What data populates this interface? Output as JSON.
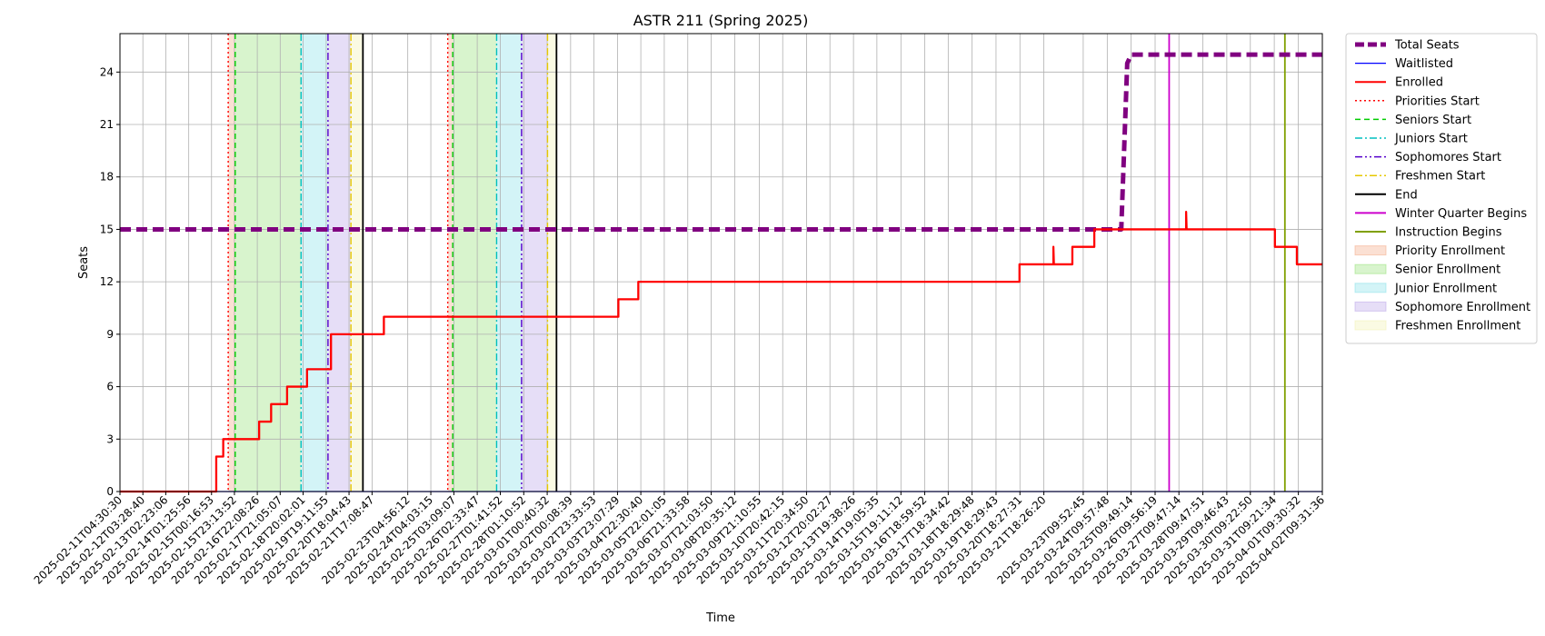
{
  "chart_data": {
    "type": "line",
    "title": "ASTR 211 (Spring 2025)",
    "xlabel": "Time",
    "ylabel": "Seats",
    "x_range": [
      "2025-02-11T04:30:30",
      "2025-04-02T09:31:36"
    ],
    "ylim": [
      0,
      26.2
    ],
    "y_ticks": [
      0,
      3,
      6,
      9,
      12,
      15,
      18,
      21,
      24
    ],
    "grid": true,
    "legend_position": "outside-right",
    "x_tick_labels": [
      "2025-02-11T04:30:30",
      "2025-02-12T03:28:40",
      "2025-02-13T02:23:06",
      "2025-02-14T01:25:56",
      "2025-02-15T00:16:53",
      "2025-02-15T23:13:52",
      "2025-02-16T22:08:26",
      "2025-02-17T21:05:07",
      "2025-02-18T20:02:01",
      "2025-02-19T19:11:55",
      "2025-02-20T18:04:43",
      "2025-02-21T17:08:47",
      "2025-02-23T04:56:12",
      "2025-02-24T04:03:15",
      "2025-02-25T03:09:07",
      "2025-02-26T02:33:47",
      "2025-02-27T01:41:52",
      "2025-02-28T01:10:52",
      "2025-03-01T00:40:32",
      "2025-03-02T00:08:39",
      "2025-03-02T23:33:53",
      "2025-03-03T23:07:29",
      "2025-03-04T22:30:40",
      "2025-03-05T22:01:05",
      "2025-03-06T21:33:58",
      "2025-03-07T21:03:50",
      "2025-03-08T20:35:12",
      "2025-03-09T21:10:55",
      "2025-03-10T20:42:15",
      "2025-03-11T20:34:50",
      "2025-03-12T20:02:27",
      "2025-03-13T19:38:26",
      "2025-03-14T19:05:35",
      "2025-03-15T19:11:12",
      "2025-03-16T18:59:52",
      "2025-03-17T18:34:42",
      "2025-03-18T18:29:48",
      "2025-03-19T18:29:43",
      "2025-03-20T18:27:31",
      "2025-03-21T18:26:20",
      "2025-03-23T09:52:45",
      "2025-03-24T09:57:48",
      "2025-03-25T09:49:14",
      "2025-03-26T09:56:19",
      "2025-03-27T09:47:14",
      "2025-03-28T09:47:51",
      "2025-03-29T09:46:43",
      "2025-03-30T09:22:50",
      "2025-03-31T09:21:34",
      "2025-04-01T09:30:32",
      "2025-04-02T09:31:36"
    ],
    "series": [
      {
        "name": "Total Seats",
        "color": "#800080",
        "style": "dashed-thick",
        "points": [
          [
            "2025-02-11T04:30:30",
            15
          ],
          [
            "2025-03-25T00:00:00",
            15
          ],
          [
            "2025-03-25T06:00:00",
            24.5
          ],
          [
            "2025-03-25T10:00:00",
            25
          ],
          [
            "2025-04-02T09:31:36",
            25
          ]
        ]
      },
      {
        "name": "Waitlisted",
        "color": "#0000ff",
        "style": "solid-thin",
        "points": [
          [
            "2025-02-11T04:30:30",
            0
          ],
          [
            "2025-04-02T09:31:36",
            0
          ]
        ]
      },
      {
        "name": "Enrolled",
        "color": "#ff0000",
        "style": "solid",
        "points": [
          [
            "2025-02-11T04:30:30",
            0
          ],
          [
            "2025-02-15T05:00:00",
            0
          ],
          [
            "2025-02-15T05:00:00",
            2
          ],
          [
            "2025-02-15T12:00:00",
            2
          ],
          [
            "2025-02-15T12:00:00",
            3
          ],
          [
            "2025-02-17T00:00:00",
            3
          ],
          [
            "2025-02-17T00:00:00",
            4
          ],
          [
            "2025-02-17T12:00:00",
            4
          ],
          [
            "2025-02-17T12:00:00",
            5
          ],
          [
            "2025-02-18T04:00:00",
            5
          ],
          [
            "2025-02-18T04:00:00",
            6
          ],
          [
            "2025-02-19T00:00:00",
            6
          ],
          [
            "2025-02-19T00:00:00",
            7
          ],
          [
            "2025-02-20T00:00:00",
            7
          ],
          [
            "2025-02-20T00:00:00",
            9
          ],
          [
            "2025-02-22T05:00:00",
            9
          ],
          [
            "2025-02-22T05:00:00",
            10
          ],
          [
            "2025-03-04T00:00:00",
            10
          ],
          [
            "2025-03-04T00:00:00",
            11
          ],
          [
            "2025-03-04T20:00:00",
            11
          ],
          [
            "2025-03-04T20:00:00",
            12
          ],
          [
            "2025-03-20T18:00:00",
            12
          ],
          [
            "2025-03-20T18:00:00",
            13
          ],
          [
            "2025-03-22T04:00:00",
            13
          ],
          [
            "2025-03-22T04:00:00",
            14
          ],
          [
            "2025-03-22T04:30:00",
            13
          ],
          [
            "2025-03-22T23:00:00",
            13
          ],
          [
            "2025-03-22T23:00:00",
            14
          ],
          [
            "2025-03-23T21:00:00",
            14
          ],
          [
            "2025-03-23T21:00:00",
            15
          ],
          [
            "2025-03-27T17:00:00",
            15
          ],
          [
            "2025-03-27T17:00:00",
            16
          ],
          [
            "2025-03-27T17:30:00",
            15
          ],
          [
            "2025-03-31T10:00:00",
            15
          ],
          [
            "2025-03-31T10:00:00",
            14
          ],
          [
            "2025-04-01T08:00:00",
            14
          ],
          [
            "2025-04-01T08:00:00",
            13
          ],
          [
            "2025-04-02T09:31:36",
            13
          ]
        ]
      }
    ],
    "vertical_lines": [
      {
        "name": "Priorities Start",
        "color": "#ff0000",
        "style": "dotted",
        "x": [
          "2025-02-15T17:00:00",
          "2025-02-24T21:00:00"
        ]
      },
      {
        "name": "Seniors Start",
        "color": "#00cc00",
        "style": "dashed",
        "x": [
          "2025-02-16T00:00:00",
          "2025-02-25T02:00:00"
        ]
      },
      {
        "name": "Juniors Start",
        "color": "#00bfbf",
        "style": "dashdot",
        "x": [
          "2025-02-18T18:00:00",
          "2025-02-26T22:00:00"
        ]
      },
      {
        "name": "Sophomores Start",
        "color": "#5500cc",
        "style": "dashdotdot",
        "x": [
          "2025-02-19T21:00:00",
          "2025-02-27T23:00:00"
        ]
      },
      {
        "name": "Freshmen Start",
        "color": "#e6c800",
        "style": "dashdot",
        "x": [
          "2025-02-20T20:00:00",
          "2025-03-01T01:00:00"
        ]
      },
      {
        "name": "End",
        "color": "#000000",
        "style": "solid",
        "x": [
          "2025-02-21T08:00:00",
          "2025-03-01T10:00:00"
        ]
      },
      {
        "name": "Winter Quarter Begins",
        "color": "#cc00cc",
        "style": "solid",
        "x": [
          "2025-03-27T00:00:00"
        ]
      },
      {
        "name": "Instruction Begins",
        "color": "#80a000",
        "style": "solid",
        "x": [
          "2025-03-31T20:00:00"
        ]
      }
    ],
    "shaded_spans": [
      {
        "name": "Priority Enrollment",
        "color": "#f4a582",
        "spans": [
          [
            "2025-02-15T17:00:00",
            "2025-02-16T00:00:00"
          ],
          [
            "2025-02-24T21:00:00",
            "2025-02-25T02:00:00"
          ]
        ]
      },
      {
        "name": "Senior Enrollment",
        "color": "#90e070",
        "spans": [
          [
            "2025-02-16T00:00:00",
            "2025-02-18T18:00:00"
          ],
          [
            "2025-02-25T02:00:00",
            "2025-02-26T22:00:00"
          ]
        ]
      },
      {
        "name": "Junior Enrollment",
        "color": "#80e0e8",
        "spans": [
          [
            "2025-02-18T18:00:00",
            "2025-02-19T21:00:00"
          ],
          [
            "2025-02-26T22:00:00",
            "2025-02-27T23:00:00"
          ]
        ]
      },
      {
        "name": "Sophomore Enrollment",
        "color": "#b8a0e8",
        "spans": [
          [
            "2025-02-19T21:00:00",
            "2025-02-20T20:00:00"
          ],
          [
            "2025-02-27T23:00:00",
            "2025-03-01T01:00:00"
          ]
        ]
      },
      {
        "name": "Freshmen Enrollment",
        "color": "#f0f0b0",
        "spans": [
          [
            "2025-02-20T20:00:00",
            "2025-02-21T08:00:00"
          ],
          [
            "2025-03-01T01:00:00",
            "2025-03-01T10:00:00"
          ]
        ]
      }
    ],
    "legend": [
      "Total Seats",
      "Waitlisted",
      "Enrolled",
      "Priorities Start",
      "Seniors Start",
      "Juniors Start",
      "Sophomores Start",
      "Freshmen Start",
      "End",
      "Winter Quarter Begins",
      "Instruction Begins",
      "Priority Enrollment",
      "Senior Enrollment",
      "Junior Enrollment",
      "Sophomore Enrollment",
      "Freshmen Enrollment"
    ]
  }
}
